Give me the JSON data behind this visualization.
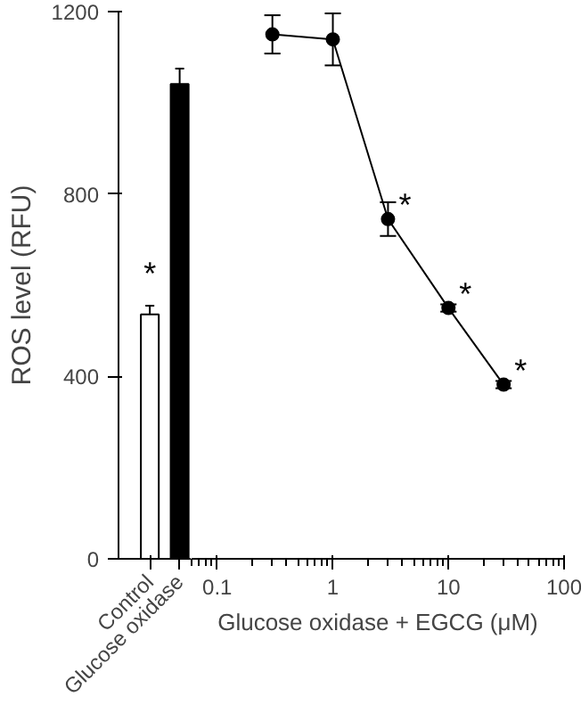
{
  "chart_data": [
    {
      "type": "bar",
      "ylabel": "ROS level (RFU)",
      "categories": [
        "Control",
        "Glucose oxidase"
      ],
      "values": [
        536,
        1041
      ],
      "errors": [
        19,
        34
      ],
      "colors": [
        "#ffffff",
        "#000000"
      ],
      "ylim": [
        0,
        1200
      ],
      "yticks": [
        0,
        400,
        800,
        1200
      ],
      "grid": false,
      "annotations": [
        "*"
      ]
    },
    {
      "type": "line",
      "xlabel": "Glucose oxidase + EGCG (μM)",
      "log": "x",
      "x": [
        0.3,
        1,
        3,
        10,
        30
      ],
      "xlim": [
        0.06,
        100
      ],
      "xticks": [
        0.1,
        1,
        10,
        100
      ],
      "ylim": [
        0,
        1200
      ],
      "yticks": [
        0,
        400,
        800,
        1200
      ],
      "tick_labels": "x",
      "grid": false,
      "marker": "circle",
      "line_style": "solid",
      "series": [
        {
          "color": "#000000",
          "values": [
            1150,
            1139,
            745,
            550,
            382
          ],
          "errors": [
            42,
            57,
            37,
            8,
            8
          ]
        }
      ],
      "annotations": [
        {
          "text": "*",
          "x": 3,
          "y": 745
        },
        {
          "text": "*",
          "x": 10,
          "y": 550
        },
        {
          "text": "*",
          "x": 30,
          "y": 382
        }
      ]
    }
  ]
}
